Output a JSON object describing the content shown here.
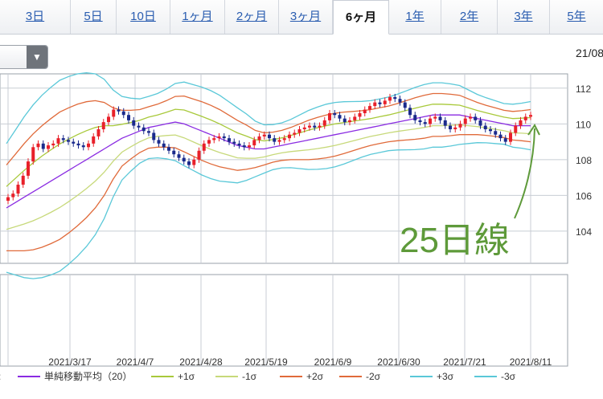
{
  "tabs": [
    {
      "label": "3日",
      "active": false
    },
    {
      "label": "5日",
      "active": false
    },
    {
      "label": "10日",
      "active": false
    },
    {
      "label": "1ヶ月",
      "active": false
    },
    {
      "label": "2ヶ月",
      "active": false
    },
    {
      "label": "3ヶ月",
      "active": false
    },
    {
      "label": "6ヶ月",
      "active": true
    },
    {
      "label": "1年",
      "active": false
    },
    {
      "label": "2年",
      "active": false
    },
    {
      "label": "3年",
      "active": false
    },
    {
      "label": "5年",
      "active": false
    }
  ],
  "date_corner": "21/08",
  "annotation": {
    "text": "25日線",
    "color": "#5e9a3a"
  },
  "colors": {
    "up": "#e8202a",
    "down": "#1a2a8c",
    "sma": "#8a2be2",
    "p1": "#a8c93a",
    "m1": "#c7d97a",
    "p2": "#e06a3a",
    "m2": "#e06a3a",
    "p3": "#5ac8d8",
    "m3": "#5ac8d8"
  },
  "chart_data": {
    "type": "candlestick",
    "y_ticks": [
      104,
      106,
      108,
      110,
      112
    ],
    "ylim": [
      102.2,
      112.8
    ],
    "x_tick_labels": [
      "2021/3/17",
      "2021/4/7",
      "2021/4/28",
      "2021/5/19",
      "2021/6/9",
      "2021/6/30",
      "2021/7/21",
      "2021/8/11"
    ],
    "close": [
      105.9,
      106.1,
      106.6,
      107.1,
      107.9,
      108.7,
      108.9,
      108.6,
      108.8,
      108.9,
      109.2,
      109.1,
      109.0,
      108.9,
      108.8,
      108.7,
      108.9,
      109.3,
      109.7,
      110.1,
      110.4,
      110.8,
      110.7,
      110.5,
      110.2,
      109.9,
      109.8,
      109.6,
      109.5,
      109.1,
      108.9,
      108.7,
      108.5,
      108.3,
      108.1,
      107.9,
      107.7,
      108.0,
      108.5,
      108.9,
      109.1,
      109.2,
      109.3,
      109.2,
      109.0,
      108.9,
      108.8,
      108.7,
      108.8,
      109.1,
      109.3,
      109.4,
      109.2,
      109.0,
      109.1,
      109.2,
      109.4,
      109.5,
      109.7,
      109.8,
      109.9,
      109.8,
      109.9,
      110.2,
      110.6,
      110.5,
      110.3,
      110.1,
      110.2,
      110.4,
      110.6,
      110.8,
      111.0,
      111.2,
      111.1,
      111.3,
      111.5,
      111.4,
      111.2,
      110.9,
      110.5,
      110.2,
      110.1,
      110.0,
      110.3,
      110.4,
      110.2,
      109.9,
      109.7,
      109.8,
      110.0,
      110.3,
      110.4,
      110.2,
      109.9,
      109.7,
      109.6,
      109.4,
      109.2,
      109.0,
      109.5,
      109.9,
      110.2,
      110.4,
      110.5
    ],
    "sma20": [
      105.3,
      105.6,
      105.9,
      106.2,
      106.5,
      106.8,
      107.1,
      107.4,
      107.7,
      108.0,
      108.3,
      108.6,
      108.9,
      109.2,
      109.4,
      109.6,
      109.8,
      109.9,
      110.0,
      110.1,
      110.0,
      109.8,
      109.6,
      109.4,
      109.2,
      109.0,
      108.8,
      108.7,
      108.6,
      108.6,
      108.7,
      108.8,
      108.9,
      109.0,
      109.1,
      109.2,
      109.3,
      109.4,
      109.5,
      109.6,
      109.7,
      109.8,
      109.9,
      110.0,
      110.1,
      110.2,
      110.3,
      110.4,
      110.5,
      110.5,
      110.5,
      110.5,
      110.4,
      110.3,
      110.2,
      110.1,
      110.0,
      109.9,
      109.9,
      109.9
    ],
    "sigma_width": [
      1.2,
      1.35,
      1.5,
      1.62,
      1.7,
      1.75,
      1.78,
      1.75,
      1.7,
      1.62,
      1.5,
      1.3,
      1.0,
      0.78,
      0.68,
      0.6,
      0.58,
      0.6,
      0.65,
      0.72,
      0.78,
      0.8,
      0.82,
      0.82,
      0.8,
      0.75,
      0.7,
      0.62,
      0.52,
      0.45,
      0.42,
      0.42,
      0.45,
      0.5,
      0.55,
      0.58,
      0.6,
      0.6,
      0.58,
      0.55,
      0.52,
      0.5,
      0.5,
      0.5,
      0.52,
      0.55,
      0.58,
      0.6,
      0.6,
      0.6,
      0.58,
      0.55,
      0.5,
      0.45,
      0.42,
      0.4,
      0.38,
      0.4,
      0.42,
      0.45
    ],
    "series": [
      {
        "name": "単純移動平均（20）",
        "color": "#8a2be2"
      },
      {
        "name": "+1σ",
        "color": "#a8c93a"
      },
      {
        "name": "-1σ",
        "color": "#c7d97a"
      },
      {
        "name": "+2σ",
        "color": "#e06a3a"
      },
      {
        "name": "-2σ",
        "color": "#e06a3a"
      },
      {
        "name": "+3σ",
        "color": "#5ac8d8"
      },
      {
        "name": "-3σ",
        "color": "#5ac8d8"
      }
    ],
    "legend_position": "bottom",
    "grid": true
  }
}
